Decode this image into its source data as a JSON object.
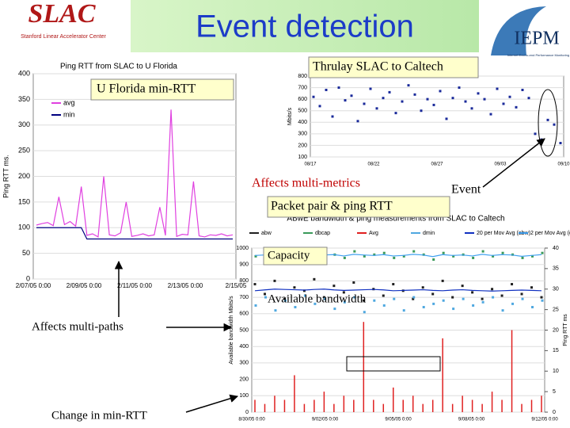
{
  "title": "Event detection",
  "logos": {
    "slac": "SLAC",
    "slac_sub": "Stanford Linear Accelerator Center",
    "iepm": "IEPM",
    "iepm_sub": "Internet End-to-end Performance Monitoring"
  },
  "annotations": {
    "u_florida": "U Florida min-RTT",
    "thrulay": "Thrulay SLAC to Caltech",
    "affects_metrics": "Affects multi-metrics",
    "event": "Event",
    "packet_pair": "Packet pair & ping RTT",
    "capacity": "Capacity",
    "available_bw": "Available bandwidth",
    "affects_paths": "Affects multi-paths",
    "change": "Change in min-RTT"
  },
  "charts": [
    {
      "type": "line",
      "title": "Ping RTT from SLAC to U Florida",
      "ylabel": "Ping RTT ms.",
      "ylim": [
        0,
        400
      ],
      "yticks": [
        0,
        50,
        100,
        150,
        200,
        250,
        300,
        350,
        400
      ],
      "xtick_labels": [
        "2/07/05 0:00",
        "2/09/05 0:00",
        "2/11/05 0:00",
        "2/13/05 0:00",
        "2/15/05"
      ],
      "series": [
        {
          "name": "avg",
          "color": "#e040e0",
          "values": [
            105,
            108,
            110,
            104,
            160,
            106,
            112,
            103,
            180,
            85,
            88,
            82,
            200,
            86,
            84,
            90,
            150,
            83,
            85,
            88,
            84,
            86,
            140,
            85,
            330,
            83,
            87,
            86,
            190,
            84,
            82,
            86,
            85,
            88,
            84,
            86
          ]
        },
        {
          "name": "min",
          "color": "#000080",
          "values": [
            100,
            100,
            100,
            100,
            100,
            100,
            100,
            100,
            100,
            78,
            78,
            78,
            78,
            78,
            78,
            78,
            78,
            78,
            78,
            78,
            78,
            78,
            78,
            78,
            78,
            78,
            78,
            78,
            78,
            78,
            78,
            78,
            78,
            78,
            78,
            78
          ]
        }
      ]
    },
    {
      "type": "scatter",
      "ylabel": "Mbits/s",
      "ylim": [
        100,
        800
      ],
      "yticks": [
        100,
        200,
        300,
        400,
        500,
        600,
        700,
        800
      ],
      "xtick_labels": [
        "08/17",
        "08/22",
        "08/27",
        "09/03",
        "09/10"
      ],
      "series": [
        {
          "name": "thrulay",
          "color": "#1a2a9a",
          "values": [
            620,
            540,
            680,
            450,
            700,
            590,
            630,
            410,
            560,
            690,
            520,
            610,
            660,
            480,
            580,
            720,
            640,
            500,
            600,
            550,
            670,
            430,
            610,
            700,
            580,
            520,
            650,
            600,
            470,
            690,
            560,
            620,
            530,
            680,
            610,
            300,
            250,
            420,
            380,
            220
          ]
        }
      ]
    },
    {
      "type": "scatter",
      "title": "ABwE bandwidth & ping measurements from SLAC to Caltech",
      "ylabel": "Available bandwidth Mbits/s",
      "y2label": "Ping RTT ms",
      "ylim": [
        0,
        1000
      ],
      "yticks": [
        0,
        100,
        200,
        300,
        400,
        500,
        600,
        700,
        800,
        900,
        1000
      ],
      "y2lim": [
        0,
        40
      ],
      "y2ticks": [
        0,
        5,
        10,
        15,
        20,
        25,
        30,
        35,
        40
      ],
      "xtick_labels": [
        "8/30/05 0:00",
        "9/02/05 0:00",
        "9/05/05 0:00",
        "9/08/05 0:00",
        "9/12/05 0:00"
      ],
      "series": [
        {
          "name": "abw",
          "type": "scatter",
          "color": "#202020",
          "values": [
            780,
            720,
            800,
            690,
            760,
            740,
            810,
            700,
            770,
            730,
            790,
            680,
            750,
            710,
            780,
            740,
            690,
            760,
            720,
            800,
            700,
            770,
            730,
            690,
            750,
            710,
            780,
            720,
            760,
            700
          ]
        },
        {
          "name": "dbcap",
          "type": "scatter",
          "color": "#3a9a5a",
          "values": [
            950,
            970,
            940,
            960,
            980,
            950,
            930,
            970,
            960,
            940,
            980,
            950,
            960,
            970,
            940,
            950,
            980,
            960,
            930,
            970,
            950,
            960,
            940,
            980,
            950,
            970,
            960,
            940,
            950,
            970
          ]
        },
        {
          "name": "Avg",
          "type": "bar",
          "axis": "y2",
          "color": "#e02020",
          "values": [
            3,
            2,
            4,
            3,
            9,
            2,
            3,
            5,
            2,
            4,
            3,
            22,
            3,
            2,
            6,
            3,
            4,
            2,
            3,
            18,
            2,
            4,
            3,
            2,
            5,
            3,
            20,
            2,
            3,
            4
          ]
        },
        {
          "name": "dmin",
          "type": "scatter",
          "color": "#4fa8e0",
          "values": [
            650,
            700,
            620,
            680,
            640,
            710,
            660,
            690,
            630,
            670,
            700,
            610,
            680,
            650,
            690,
            620,
            700,
            640,
            660,
            680,
            630,
            690,
            650,
            670,
            700,
            620,
            660,
            690,
            640,
            680
          ]
        },
        {
          "name": "20 per Mov Avg (abw)",
          "type": "line",
          "color": "#1030c0",
          "values": [
            740,
            745,
            750,
            748,
            746,
            744,
            748,
            750,
            745,
            742,
            744,
            746,
            748,
            745,
            740,
            742,
            744,
            746,
            742,
            740,
            744,
            746,
            742,
            740,
            738,
            740,
            742,
            744,
            742,
            740
          ]
        },
        {
          "name": "2 per Mov Avg (dbcap)",
          "type": "line",
          "color": "#40a0f0",
          "values": [
            955,
            958,
            952,
            960,
            962,
            955,
            950,
            958,
            960,
            952,
            962,
            958,
            955,
            960,
            952,
            955,
            962,
            958,
            948,
            960,
            955,
            958,
            952,
            962,
            955,
            960,
            958,
            950,
            955,
            960
          ]
        }
      ]
    }
  ]
}
